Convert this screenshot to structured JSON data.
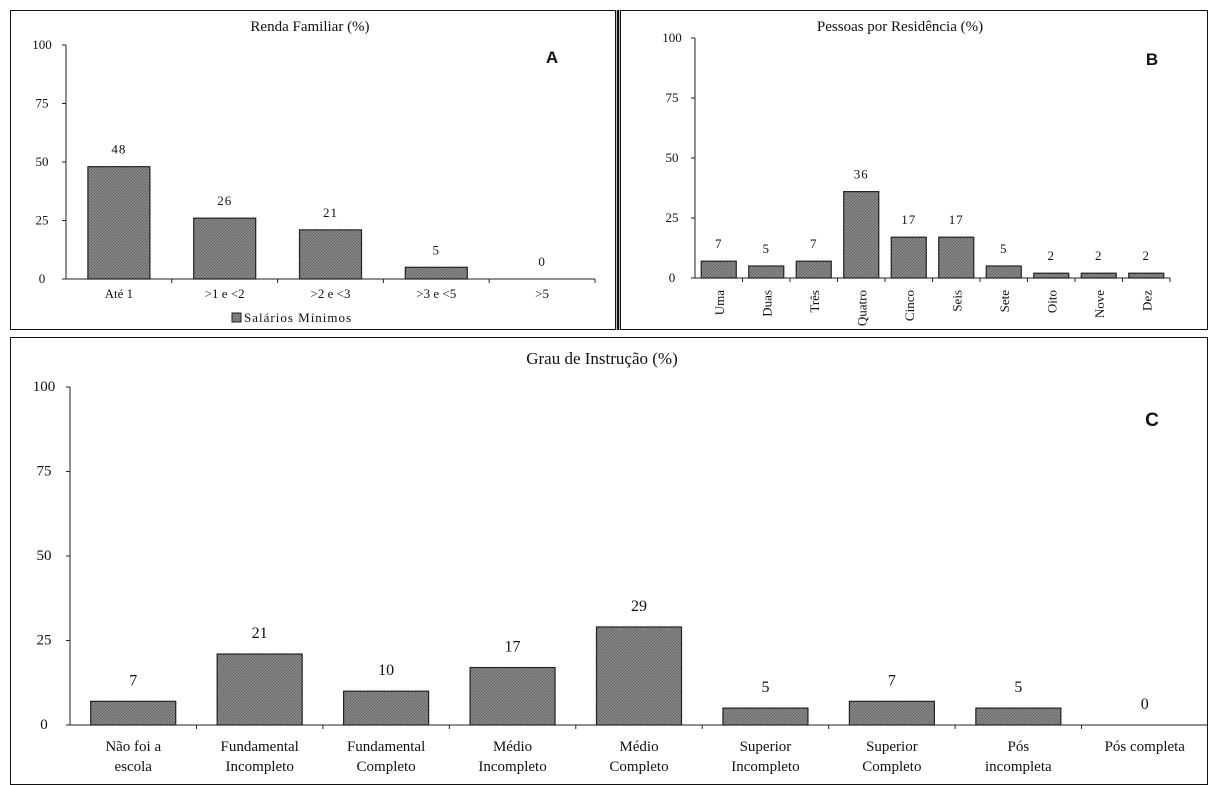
{
  "colors": {
    "bar_fill": "#8c8c8c",
    "bar_stroke": "#222222",
    "axis": "#222222"
  },
  "chart_data": [
    {
      "id": "A",
      "type": "bar",
      "title": "Renda Familiar (%)",
      "panel_label": "A",
      "categories": [
        "Até 1",
        ">1 e <2",
        ">2 e <3",
        ">3 e <5",
        ">5"
      ],
      "values": [
        48,
        26,
        21,
        5,
        0
      ],
      "data_labels": [
        "48",
        "26",
        "21",
        "5",
        "0"
      ],
      "legend": "Salários Mínimos",
      "legend_position": "bottom",
      "yticks": [
        "0",
        "25",
        "50",
        "75",
        "100"
      ],
      "ylim": [
        0,
        100
      ],
      "grid": false
    },
    {
      "id": "B",
      "type": "bar",
      "title": "Pessoas por Residência (%)",
      "panel_label": "B",
      "categories": [
        "Uma",
        "Duas",
        "Três",
        "Quatro",
        "Cinco",
        "Seis",
        "Sete",
        "Oito",
        "Nove",
        "Dez"
      ],
      "values": [
        7,
        5,
        7,
        36,
        17,
        17,
        5,
        2,
        2,
        2
      ],
      "data_labels": [
        "7",
        "5",
        "7",
        "36",
        "17",
        "17",
        "5",
        "2",
        "2",
        "2"
      ],
      "yticks": [
        "0",
        "25",
        "50",
        "75",
        "100"
      ],
      "ylim": [
        0,
        100
      ],
      "grid": false
    },
    {
      "id": "C",
      "type": "bar",
      "title": "Grau de Instrução (%)",
      "panel_label": "C",
      "categories": [
        [
          "Não foi a",
          "escola"
        ],
        [
          "Fundamental",
          "Incompleto"
        ],
        [
          "Fundamental",
          "Completo"
        ],
        [
          "Médio",
          "Incompleto"
        ],
        [
          "Médio",
          "Completo"
        ],
        [
          "Superior",
          "Incompleto"
        ],
        [
          "Superior",
          "Completo"
        ],
        [
          "Pós",
          "incompleta"
        ],
        [
          "Pós completa"
        ]
      ],
      "values": [
        7,
        21,
        10,
        17,
        29,
        5,
        7,
        5,
        0
      ],
      "data_labels": [
        "7",
        "21",
        "10",
        "17",
        "29",
        "5",
        "7",
        "5",
        "0"
      ],
      "yticks": [
        "0",
        "25",
        "50",
        "75",
        "100"
      ],
      "ylim": [
        0,
        100
      ],
      "grid": false
    }
  ]
}
